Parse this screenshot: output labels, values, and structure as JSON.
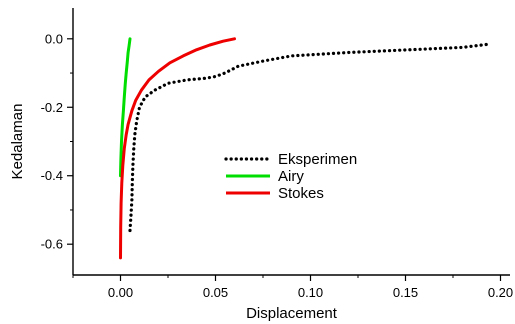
{
  "chart_data": {
    "type": "line",
    "title": "",
    "xlabel": "Displacement",
    "ylabel": "Kedalaman",
    "xlim": [
      -0.025,
      0.205
    ],
    "ylim": [
      -0.69,
      0.09
    ],
    "x_ticks": [
      0.0,
      0.05,
      0.1,
      0.15,
      0.2
    ],
    "x_tick_labels": [
      "0.00",
      "0.05",
      "0.10",
      "0.15",
      "0.20"
    ],
    "y_ticks": [
      0.0,
      -0.2,
      -0.4,
      -0.6
    ],
    "y_tick_labels": [
      "0.0",
      "-0.2",
      "-0.4",
      "-0.6"
    ],
    "grid": false,
    "legend_position": "center-right",
    "series": [
      {
        "name": "Eksperimen",
        "style": "dotted",
        "color": "#000000",
        "x": [
          0.005,
          0.0055,
          0.006,
          0.0062,
          0.0065,
          0.007,
          0.0075,
          0.0085,
          0.01,
          0.013,
          0.018,
          0.025,
          0.035,
          0.045,
          0.05,
          0.055,
          0.062,
          0.075,
          0.09,
          0.105,
          0.12,
          0.14,
          0.16,
          0.18,
          0.195
        ],
        "y": [
          -0.56,
          -0.52,
          -0.47,
          -0.42,
          -0.37,
          -0.32,
          -0.28,
          -0.24,
          -0.2,
          -0.17,
          -0.15,
          -0.13,
          -0.12,
          -0.115,
          -0.11,
          -0.1,
          -0.08,
          -0.065,
          -0.05,
          -0.045,
          -0.04,
          -0.035,
          -0.03,
          -0.025,
          -0.015
        ]
      },
      {
        "name": "Airy",
        "style": "solid",
        "color": "#00dd00",
        "x": [
          0.0,
          0.0002,
          0.0005,
          0.001,
          0.0015,
          0.002,
          0.0025,
          0.003,
          0.0035,
          0.004,
          0.0045,
          0.005
        ],
        "y": [
          -0.4,
          -0.35,
          -0.3,
          -0.25,
          -0.21,
          -0.17,
          -0.13,
          -0.1,
          -0.07,
          -0.04,
          -0.02,
          0.0
        ]
      },
      {
        "name": "Stokes",
        "style": "solid",
        "color": "#ee0000",
        "x": [
          0.0,
          0.0001,
          0.0003,
          0.0007,
          0.0012,
          0.002,
          0.003,
          0.004,
          0.006,
          0.008,
          0.011,
          0.015,
          0.02,
          0.026,
          0.033,
          0.04,
          0.047,
          0.054,
          0.06
        ],
        "y": [
          -0.64,
          -0.55,
          -0.48,
          -0.42,
          -0.37,
          -0.32,
          -0.28,
          -0.25,
          -0.21,
          -0.18,
          -0.15,
          -0.12,
          -0.095,
          -0.07,
          -0.05,
          -0.032,
          -0.018,
          -0.007,
          0.0
        ]
      }
    ]
  }
}
